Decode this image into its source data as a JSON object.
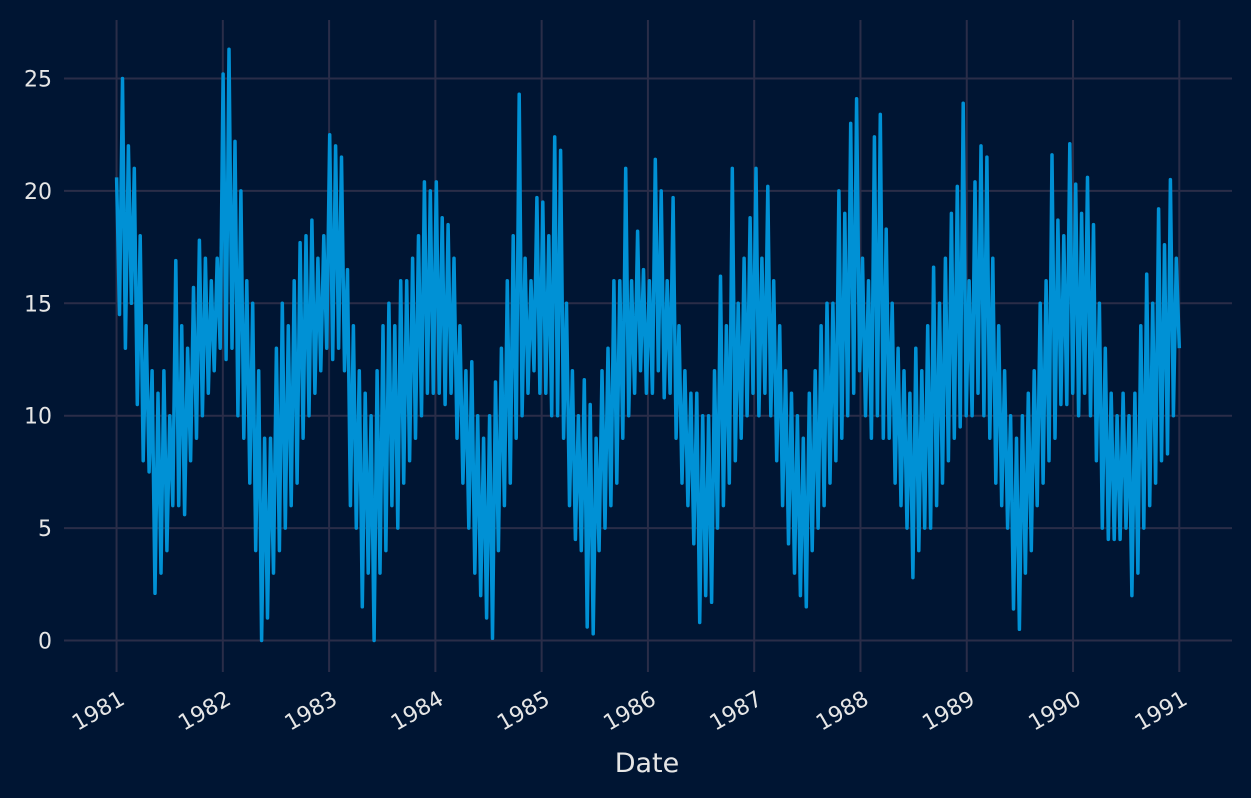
{
  "chart_data": {
    "type": "line",
    "title": "",
    "xlabel": "Date",
    "ylabel": "",
    "x_date_range": [
      "1981-01-01",
      "1990-12-31"
    ],
    "xlim": [
      "1980-07-04",
      "1991-07-01"
    ],
    "ylim": [
      -1.4,
      27.6
    ],
    "x_ticks": [
      "1981",
      "1982",
      "1983",
      "1984",
      "1985",
      "1986",
      "1987",
      "1988",
      "1989",
      "1990",
      "1991"
    ],
    "y_ticks": [
      "0",
      "5",
      "10",
      "15",
      "20",
      "25"
    ],
    "grid": true,
    "legend": "none",
    "colors": {
      "background": "#001533",
      "grid": "#2a2d48",
      "line": "#0091d5",
      "text": "#e6e6e6"
    },
    "y": [
      20.6,
      14.5,
      25,
      13,
      22,
      15,
      21,
      10.5,
      18,
      8,
      14,
      7.5,
      12,
      2.1,
      11,
      3,
      12,
      4,
      10,
      6,
      16.9,
      6,
      14,
      5.6,
      13,
      8,
      15.7,
      9,
      17.8,
      10,
      17,
      11,
      16,
      12,
      17,
      13,
      25.2,
      12.5,
      26.3,
      13,
      22.2,
      10,
      20,
      9,
      16,
      7,
      15,
      4,
      12,
      0,
      9,
      1,
      9,
      3,
      13,
      4,
      15,
      5,
      14,
      6,
      16,
      7,
      17.7,
      9,
      18,
      10,
      18.7,
      11,
      17,
      12,
      18,
      13,
      22.5,
      12.5,
      22,
      13,
      21.5,
      12,
      16.5,
      6,
      14,
      5,
      12,
      1.5,
      11,
      3,
      10,
      0,
      12,
      3,
      14,
      4,
      15,
      6,
      14,
      5,
      16,
      7,
      16,
      8,
      17,
      9,
      18,
      10,
      20.4,
      11,
      20,
      11,
      20.4,
      11,
      18.8,
      10.5,
      18.5,
      11,
      17,
      9,
      14,
      7,
      12,
      5,
      12.4,
      3,
      10,
      2,
      9,
      1,
      10,
      0.1,
      11.5,
      4,
      13,
      6,
      16,
      7,
      18,
      9,
      24.3,
      10,
      17,
      11,
      16,
      12,
      19.7,
      11,
      19.5,
      11,
      18,
      10,
      22.4,
      10,
      21.8,
      9,
      15,
      6,
      12,
      4.5,
      10,
      4,
      11.6,
      0.6,
      10.5,
      0.3,
      9,
      4,
      12,
      5,
      13,
      6,
      16,
      7,
      16,
      9,
      21,
      10,
      16,
      11,
      18.2,
      12,
      16.5,
      11,
      16,
      11,
      21.4,
      12,
      20,
      10.8,
      16,
      11,
      19.7,
      9,
      14,
      7,
      12,
      6,
      11,
      4.3,
      11,
      0.8,
      10,
      2,
      10,
      1.7,
      12,
      5,
      16.2,
      6,
      14,
      7,
      21,
      8,
      15,
      9,
      17,
      10,
      18.8,
      11,
      21,
      10,
      17,
      11,
      20.2,
      10,
      16,
      8,
      14,
      6,
      12,
      4.3,
      11,
      3,
      10,
      2,
      9,
      1.5,
      11,
      4,
      12,
      5,
      14,
      6,
      15,
      7,
      15,
      8,
      20,
      9,
      19,
      10,
      23,
      11,
      24.1,
      12,
      17,
      10,
      16,
      9,
      22.4,
      10,
      23.4,
      9,
      18.3,
      9,
      15,
      7,
      13,
      6,
      12,
      5,
      11,
      2.8,
      13,
      4,
      12,
      5,
      14,
      5,
      16.6,
      6,
      15,
      7,
      17,
      8,
      19,
      9,
      20.2,
      9.5,
      23.9,
      10,
      16,
      10,
      20.4,
      11,
      22,
      10,
      21.5,
      9,
      17,
      7,
      14,
      6,
      12,
      5,
      10,
      1.4,
      9,
      0.5,
      10,
      3,
      11,
      4,
      12,
      6,
      15,
      7,
      16,
      8,
      21.6,
      9,
      18.7,
      10.5,
      18,
      10.5,
      22.1,
      11,
      20.3,
      10,
      19,
      11,
      20.6,
      10,
      18.5,
      8,
      15,
      5,
      13,
      4.5,
      11,
      4.5,
      10,
      4.5,
      11,
      5,
      10,
      2,
      11,
      3,
      14,
      5,
      16.3,
      6,
      15,
      7,
      19.2,
      8,
      17.6,
      8.3,
      20.5,
      10,
      17,
      13
    ]
  }
}
